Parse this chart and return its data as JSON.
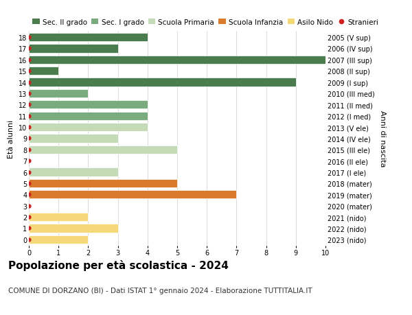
{
  "title": "Popolazione per età scolastica - 2024",
  "subtitle": "COMUNE DI DORZANO (BI) - Dati ISTAT 1° gennaio 2024 - Elaborazione TUTTITALIA.IT",
  "ylabel_left": "Età alunni",
  "ylabel_right": "Anni di nascita",
  "xlim": [
    0,
    10
  ],
  "xticks": [
    0,
    1,
    2,
    3,
    4,
    5,
    6,
    7,
    8,
    9,
    10
  ],
  "ages": [
    18,
    17,
    16,
    15,
    14,
    13,
    12,
    11,
    10,
    9,
    8,
    7,
    6,
    5,
    4,
    3,
    2,
    1,
    0
  ],
  "right_labels": [
    "2005 (V sup)",
    "2006 (IV sup)",
    "2007 (III sup)",
    "2008 (II sup)",
    "2009 (I sup)",
    "2010 (III med)",
    "2011 (II med)",
    "2012 (I med)",
    "2013 (V ele)",
    "2014 (IV ele)",
    "2015 (III ele)",
    "2016 (II ele)",
    "2017 (I ele)",
    "2018 (mater)",
    "2019 (mater)",
    "2020 (mater)",
    "2021 (nido)",
    "2022 (nido)",
    "2023 (nido)"
  ],
  "bars": [
    {
      "age": 18,
      "value": 4,
      "color": "#4a7c4e"
    },
    {
      "age": 17,
      "value": 3,
      "color": "#4a7c4e"
    },
    {
      "age": 16,
      "value": 10,
      "color": "#4a7c4e"
    },
    {
      "age": 15,
      "value": 1,
      "color": "#4a7c4e"
    },
    {
      "age": 14,
      "value": 9,
      "color": "#4a7c4e"
    },
    {
      "age": 13,
      "value": 2,
      "color": "#7aab7e"
    },
    {
      "age": 12,
      "value": 4,
      "color": "#7aab7e"
    },
    {
      "age": 11,
      "value": 4,
      "color": "#7aab7e"
    },
    {
      "age": 10,
      "value": 4,
      "color": "#c5dbb7"
    },
    {
      "age": 9,
      "value": 3,
      "color": "#c5dbb7"
    },
    {
      "age": 8,
      "value": 5,
      "color": "#c5dbb7"
    },
    {
      "age": 7,
      "value": 0,
      "color": "#c5dbb7"
    },
    {
      "age": 6,
      "value": 3,
      "color": "#c5dbb7"
    },
    {
      "age": 5,
      "value": 5,
      "color": "#d97b2a"
    },
    {
      "age": 4,
      "value": 7,
      "color": "#d97b2a"
    },
    {
      "age": 3,
      "value": 0,
      "color": "#d97b2a"
    },
    {
      "age": 2,
      "value": 2,
      "color": "#f5d87a"
    },
    {
      "age": 1,
      "value": 3,
      "color": "#f5d87a"
    },
    {
      "age": 0,
      "value": 2,
      "color": "#f5d87a"
    }
  ],
  "stranieri_color": "#cc2222",
  "stranieri_dots": [
    18,
    17,
    16,
    15,
    14,
    13,
    12,
    11,
    10,
    9,
    8,
    7,
    6,
    5,
    4,
    3,
    2,
    1,
    0
  ],
  "legend_items": [
    {
      "label": "Sec. II grado",
      "color": "#4a7c4e",
      "type": "patch"
    },
    {
      "label": "Sec. I grado",
      "color": "#7aab7e",
      "type": "patch"
    },
    {
      "label": "Scuola Primaria",
      "color": "#c5dbb7",
      "type": "patch"
    },
    {
      "label": "Scuola Infanzia",
      "color": "#d97b2a",
      "type": "patch"
    },
    {
      "label": "Asilo Nido",
      "color": "#f5d87a",
      "type": "patch"
    },
    {
      "label": "Stranieri",
      "color": "#cc2222",
      "type": "dot"
    }
  ],
  "bg_color": "#ffffff",
  "grid_color": "#cccccc",
  "bar_height": 0.75,
  "title_fontsize": 11,
  "subtitle_fontsize": 7.5,
  "axis_label_fontsize": 8,
  "tick_fontsize": 7,
  "legend_fontsize": 7.5
}
